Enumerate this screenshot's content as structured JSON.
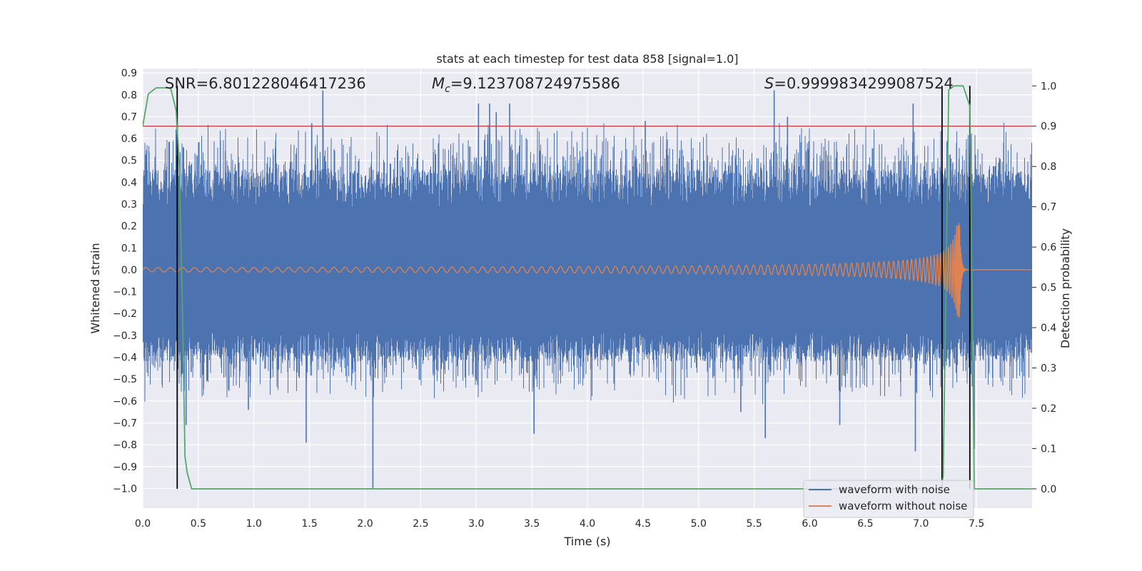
{
  "chart_data": {
    "type": "line",
    "title": "stats at each timestep for test data 858 [signal=1.0]",
    "xlabel": "Time (s)",
    "ylabel": "Whitened strain",
    "y2label": "Detection probability",
    "xlim": [
      0.0,
      8.0
    ],
    "ylim": [
      -1.09,
      0.92
    ],
    "y2lim": [
      -0.048,
      1.043
    ],
    "xticks": [
      0.0,
      0.5,
      1.0,
      1.5,
      2.0,
      2.5,
      3.0,
      3.5,
      4.0,
      4.5,
      5.0,
      5.5,
      6.0,
      6.5,
      7.0,
      7.5
    ],
    "xtick_labels": [
      "0.0",
      "0.5",
      "1.0",
      "1.5",
      "2.0",
      "2.5",
      "3.0",
      "3.5",
      "4.0",
      "4.5",
      "5.0",
      "5.5",
      "6.0",
      "6.5",
      "7.0",
      "7.5"
    ],
    "yticks": [
      0.9,
      0.8,
      0.7,
      0.6,
      0.5,
      0.4,
      0.3,
      0.2,
      0.1,
      0.0,
      -0.1,
      -0.2,
      -0.3,
      -0.4,
      -0.5,
      -0.6,
      -0.7,
      -0.8,
      -0.9,
      -1.0
    ],
    "ytick_labels": [
      "0.9",
      "0.8",
      "0.7",
      "0.6",
      "0.5",
      "0.4",
      "0.3",
      "0.2",
      "0.1",
      "0.0",
      "−0.1",
      "−0.2",
      "−0.3",
      "−0.4",
      "−0.5",
      "−0.6",
      "−0.7",
      "−0.8",
      "−0.9",
      "−1.0"
    ],
    "y2ticks": [
      1.0,
      0.9,
      0.8,
      0.7,
      0.6,
      0.5,
      0.4,
      0.3,
      0.2,
      0.1,
      0.0
    ],
    "y2tick_labels": [
      "1.0",
      "0.9",
      "0.8",
      "0.7",
      "0.6",
      "0.5",
      "0.4",
      "0.3",
      "0.2",
      "0.1",
      "0.0"
    ],
    "grid": true,
    "legend_position": "bottom-right",
    "series": [
      {
        "name": "waveform with noise",
        "color": "#4c72b0",
        "description": "whitened noisy strain spanning 0.0-8.0 s",
        "core_amplitude": 0.28,
        "spike_peaks": [
          {
            "t": 1.62,
            "v": 0.82
          },
          {
            "t": 5.68,
            "v": 0.82
          },
          {
            "t": 3.02,
            "v": 0.76
          },
          {
            "t": 3.12,
            "v": 0.76
          },
          {
            "t": 3.3,
            "v": 0.76
          },
          {
            "t": 6.93,
            "v": 0.76
          },
          {
            "t": 3.18,
            "v": 0.72
          },
          {
            "t": 5.8,
            "v": 0.7
          },
          {
            "t": 4.52,
            "v": 0.68
          },
          {
            "t": 1.52,
            "v": 0.67
          },
          {
            "t": 2.07,
            "v": -1.0
          },
          {
            "t": 6.95,
            "v": -0.83
          },
          {
            "t": 1.47,
            "v": -0.79
          },
          {
            "t": 7.48,
            "v": -0.82
          },
          {
            "t": 5.6,
            "v": -0.77
          },
          {
            "t": 0.39,
            "v": -0.71
          },
          {
            "t": 6.27,
            "v": -0.71
          },
          {
            "t": 3.52,
            "v": -0.75
          },
          {
            "t": 5.38,
            "v": -0.65
          },
          {
            "t": 0.95,
            "v": -0.64
          }
        ]
      },
      {
        "name": "waveform without noise",
        "color": "#dd8452",
        "description": "clean chirp signal, amplitude grows toward merger near t=7.35 s then ringdown",
        "amplitude_start": 0.01,
        "peak_time": 7.35,
        "peak_high": 0.19,
        "peak_low": -0.22
      },
      {
        "name": "detection probability",
        "color": "#55a868",
        "axis": "right",
        "points": [
          [
            0.0,
            0.9
          ],
          [
            0.05,
            0.98
          ],
          [
            0.12,
            0.995
          ],
          [
            0.25,
            0.995
          ],
          [
            0.3,
            0.94
          ],
          [
            0.33,
            0.8
          ],
          [
            0.36,
            0.4
          ],
          [
            0.38,
            0.08
          ],
          [
            0.4,
            0.04
          ],
          [
            0.44,
            0.0
          ],
          [
            5.75,
            0.0
          ],
          [
            5.8,
            0.0
          ],
          [
            7.18,
            0.0
          ],
          [
            7.2,
            0.03
          ],
          [
            7.22,
            0.4
          ],
          [
            7.25,
            0.99
          ],
          [
            7.3,
            1.0
          ],
          [
            7.38,
            1.0
          ],
          [
            7.44,
            0.95
          ],
          [
            7.46,
            0.5
          ],
          [
            7.48,
            0.0
          ],
          [
            8.0,
            0.0
          ]
        ]
      }
    ],
    "threshold_line": {
      "value": 0.9,
      "axis": "right",
      "color": "#c44e52"
    },
    "vertical_markers": [
      0.31,
      7.19,
      7.44
    ],
    "annotations": {
      "snr": "SNR=6.801228046417236",
      "mc_symbol": "M",
      "mc_subscript": "c",
      "mc_value": "=9.123708724975586",
      "s_symbol": "S",
      "s_value": "=0.9999834299087524"
    }
  }
}
